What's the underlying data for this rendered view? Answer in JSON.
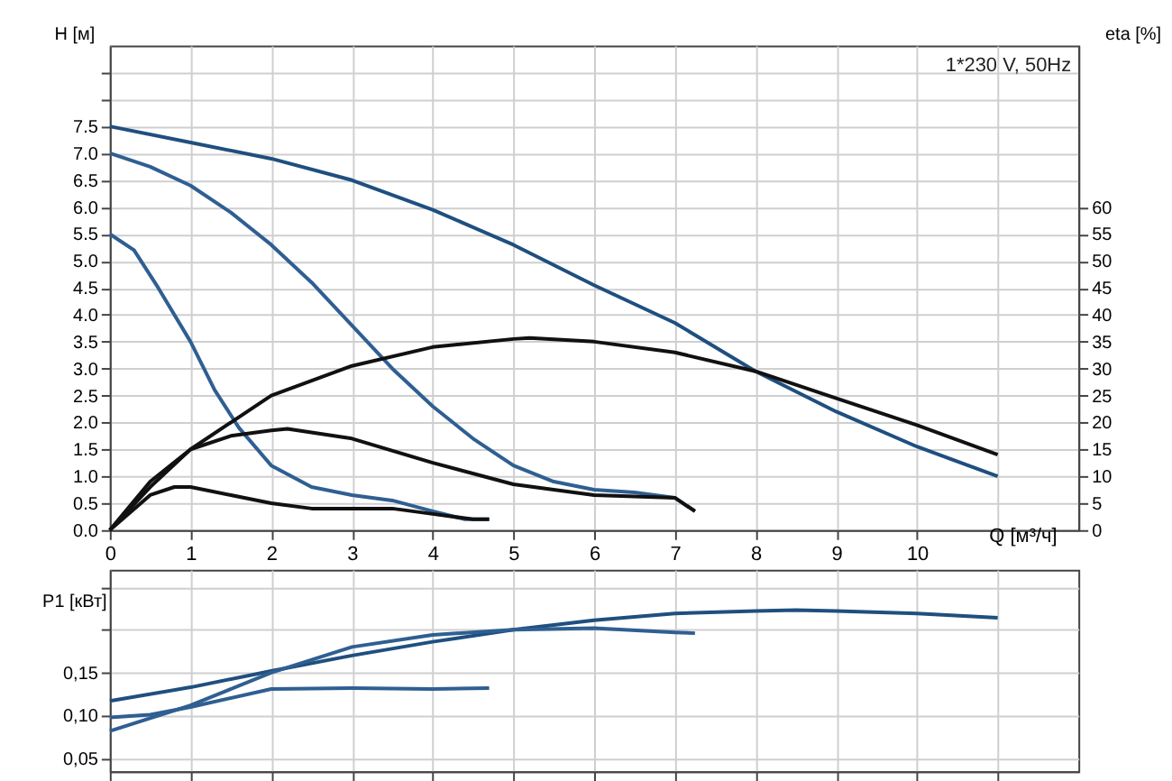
{
  "chart_data": [
    {
      "type": "line",
      "xlabel": "Q [м³/ч]",
      "ylabel": "H [м]",
      "y2label": "eta [%]",
      "annotations": [
        "1*230 V, 50Hz"
      ],
      "xlim": [
        0,
        12
      ],
      "xticks": [
        0,
        1,
        2,
        3,
        4,
        5,
        6,
        7,
        8,
        9,
        10,
        {
          "value": 11,
          "label": null
        }
      ],
      "ylim": [
        0,
        9
      ],
      "yticks": [
        {
          "value": 0,
          "label": "0.0"
        },
        0.5,
        {
          "value": 1,
          "label": "1.0"
        },
        1.5,
        {
          "value": 2,
          "label": "2.0"
        },
        2.5,
        {
          "value": 3,
          "label": "3.0"
        },
        3.5,
        {
          "value": 4,
          "label": "4.0"
        },
        4.5,
        {
          "value": 5,
          "label": "5.0"
        },
        5.5,
        {
          "value": 6,
          "label": "6.0"
        },
        6.5,
        {
          "value": 7,
          "label": "7.0"
        },
        7.5,
        {
          "value": 8,
          "label": null
        },
        {
          "value": 8.5,
          "label": null
        }
      ],
      "y2lim": [
        0,
        90
      ],
      "y2ticks": [
        0,
        5,
        10,
        15,
        20,
        25,
        30,
        35,
        40,
        45,
        50,
        55,
        60
      ],
      "grid": true,
      "marker": "none",
      "line_style": "solid",
      "series": [
        {
          "color": "#1f4f7f",
          "x": [
            0,
            1,
            2,
            3,
            4,
            5,
            6,
            7,
            8,
            9,
            10,
            11
          ],
          "values": [
            7.5,
            7.2,
            6.9,
            6.5,
            5.95,
            5.3,
            4.55,
            3.85,
            2.95,
            2.2,
            1.55,
            1.0
          ]
        },
        {
          "color": "#2f5f92",
          "x": [
            0,
            0.5,
            1,
            1.5,
            2,
            2.5,
            3,
            3.5,
            4,
            4.5,
            5,
            5.5,
            6,
            6.5,
            7,
            7.25
          ],
          "values": [
            7.0,
            6.75,
            6.4,
            5.9,
            5.3,
            4.6,
            3.8,
            3.0,
            2.3,
            1.7,
            1.2,
            0.9,
            0.75,
            0.7,
            0.6,
            0.35
          ]
        },
        {
          "color": "#2f5f92",
          "x": [
            0,
            0.3,
            0.6,
            1,
            1.3,
            1.6,
            2,
            2.5,
            3,
            3.5,
            4,
            4.4,
            4.7
          ],
          "values": [
            5.5,
            5.2,
            4.5,
            3.5,
            2.6,
            1.9,
            1.2,
            0.8,
            0.65,
            0.55,
            0.35,
            0.2,
            0.2
          ]
        },
        {
          "color": "#111111",
          "axis": "y2",
          "x": [
            0,
            0.5,
            1,
            2,
            3,
            4,
            5,
            5.2,
            6,
            7,
            8,
            9,
            10,
            11
          ],
          "values": [
            0,
            8,
            15,
            25,
            30.5,
            34,
            35.5,
            35.7,
            35,
            33,
            29.5,
            24.5,
            19.5,
            14
          ]
        },
        {
          "color": "#111111",
          "axis": "y2",
          "x": [
            0,
            0.5,
            1,
            1.5,
            2,
            2.2,
            3,
            4,
            5,
            6,
            7,
            7.25
          ],
          "values": [
            0,
            9,
            15,
            17.5,
            18.5,
            18.8,
            17,
            12.5,
            8.5,
            6.5,
            6,
            3.5
          ]
        },
        {
          "color": "#111111",
          "axis": "y2",
          "x": [
            0,
            0.5,
            0.8,
            1,
            1.5,
            2,
            2.5,
            3,
            3.5,
            4,
            4.5,
            4.7
          ],
          "values": [
            0,
            6.5,
            8,
            8,
            6.5,
            5,
            4,
            4,
            4,
            3,
            2,
            2
          ]
        }
      ]
    },
    {
      "type": "line",
      "ylabel": "P1 [кВт]",
      "tick_labels": "y",
      "xlim": [
        0,
        12
      ],
      "xticks": [
        0,
        1,
        2,
        3,
        4,
        5,
        6,
        7,
        8,
        9,
        10,
        11
      ],
      "ylim": [
        0.035,
        0.27
      ],
      "yticks": [
        {
          "value": 0.05,
          "label": "0,05"
        },
        {
          "value": 0.1,
          "label": "0,10"
        },
        {
          "value": 0.15,
          "label": "0,15"
        },
        {
          "value": 0.2,
          "label": null
        },
        {
          "value": 0.25,
          "label": null
        }
      ],
      "grid": true,
      "marker": "none",
      "line_style": "solid",
      "series": [
        {
          "color": "#1f4f7f",
          "x": [
            0,
            1,
            2,
            3,
            4,
            5,
            6,
            7,
            8,
            8.5,
            9,
            10,
            11
          ],
          "values": [
            0.117,
            0.133,
            0.152,
            0.17,
            0.186,
            0.2,
            0.211,
            0.219,
            0.222,
            0.223,
            0.222,
            0.219,
            0.214
          ]
        },
        {
          "color": "#2f5f92",
          "x": [
            0,
            1,
            2,
            3,
            4,
            5,
            6,
            7,
            7.25
          ],
          "values": [
            0.082,
            0.112,
            0.15,
            0.18,
            0.194,
            0.2,
            0.202,
            0.197,
            0.196
          ]
        },
        {
          "color": "#2f5f92",
          "x": [
            0,
            0.5,
            1,
            2,
            3,
            4,
            4.7
          ],
          "values": [
            0.098,
            0.101,
            0.11,
            0.131,
            0.132,
            0.131,
            0.132
          ]
        }
      ]
    }
  ]
}
